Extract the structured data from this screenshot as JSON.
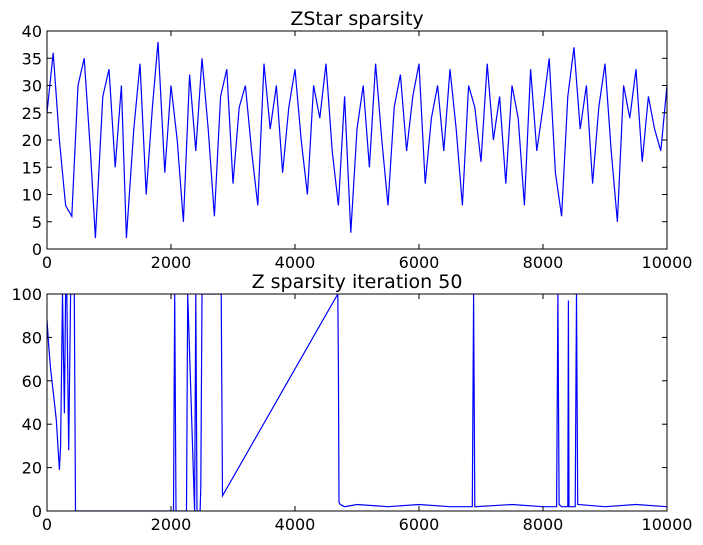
{
  "chart_data": [
    {
      "type": "line",
      "title": "ZStar sparsity",
      "xlabel": "",
      "ylabel": "",
      "xlim": [
        0,
        10000
      ],
      "ylim": [
        0,
        40
      ],
      "xticks": [
        0,
        2000,
        4000,
        6000,
        8000,
        10000
      ],
      "yticks": [
        0,
        5,
        10,
        15,
        20,
        25,
        30,
        35,
        40
      ],
      "grid": false,
      "legend": "none",
      "line_color": "#0000ff",
      "series": [
        {
          "description": "dense noisy signal oscillating roughly between 2 and 38 over 10000 iterations",
          "x": [
            0,
            100,
            200,
            300,
            400,
            500,
            600,
            700,
            780,
            900,
            1000,
            1100,
            1200,
            1280,
            1400,
            1500,
            1600,
            1700,
            1790,
            1900,
            2000,
            2100,
            2200,
            2300,
            2400,
            2500,
            2600,
            2700,
            2800,
            2900,
            3000,
            3100,
            3200,
            3300,
            3400,
            3500,
            3600,
            3700,
            3800,
            3900,
            4000,
            4100,
            4200,
            4300,
            4400,
            4500,
            4600,
            4700,
            4800,
            4900,
            5000,
            5100,
            5200,
            5300,
            5400,
            5500,
            5600,
            5700,
            5800,
            5900,
            6000,
            6100,
            6200,
            6300,
            6400,
            6500,
            6600,
            6700,
            6800,
            6900,
            7000,
            7100,
            7200,
            7300,
            7400,
            7500,
            7600,
            7700,
            7800,
            7900,
            8000,
            8100,
            8200,
            8300,
            8400,
            8500,
            8600,
            8700,
            8800,
            8900,
            9000,
            9100,
            9200,
            9300,
            9400,
            9500,
            9600,
            9700,
            9800,
            9900,
            10000
          ],
          "values": [
            25,
            36,
            20,
            8,
            6,
            30,
            35,
            18,
            2,
            28,
            33,
            15,
            30,
            2,
            22,
            34,
            10,
            26,
            38,
            14,
            30,
            20,
            5,
            32,
            18,
            35,
            22,
            6,
            28,
            33,
            12,
            26,
            30,
            18,
            8,
            34,
            22,
            30,
            14,
            26,
            33,
            20,
            10,
            30,
            24,
            34,
            18,
            8,
            28,
            3,
            22,
            30,
            15,
            34,
            20,
            8,
            26,
            32,
            18,
            28,
            34,
            12,
            24,
            30,
            18,
            33,
            22,
            8,
            30,
            26,
            16,
            34,
            20,
            28,
            12,
            30,
            24,
            8,
            33,
            18,
            26,
            35,
            14,
            6,
            28,
            37,
            22,
            30,
            12,
            26,
            34,
            18,
            5,
            30,
            24,
            33,
            16,
            28,
            22,
            18,
            30
          ]
        }
      ]
    },
    {
      "type": "line",
      "title": "Z sparsity iteration 50",
      "xlabel": "",
      "ylabel": "",
      "xlim": [
        0,
        10000
      ],
      "ylim": [
        0,
        100
      ],
      "xticks": [
        0,
        2000,
        4000,
        6000,
        8000,
        10000
      ],
      "yticks": [
        0,
        20,
        40,
        60,
        80,
        100
      ],
      "grid": false,
      "legend": "none",
      "line_color": "#0000ff",
      "series": [
        {
          "description": "decays from about 88 to about 20 in first 300 iterations, mostly clipped above 100 until ~400, sparse spikes, then near 2-4 after ~4700 with a few spikes",
          "x": [
            0,
            30,
            60,
            100,
            150,
            200,
            220,
            250,
            280,
            300,
            320,
            350,
            380,
            400,
            420,
            440,
            460,
            2040,
            2060,
            2080,
            2250,
            2270,
            2380,
            2400,
            2420,
            2470,
            2480,
            2500,
            2810,
            2830,
            4690,
            4700,
            4710,
            4730,
            4800,
            5000,
            5500,
            6000,
            6500,
            6860,
            6880,
            6900,
            7500,
            8000,
            8220,
            8240,
            8260,
            8300,
            8400,
            8410,
            8420,
            8520,
            8540,
            8560,
            9000,
            9500,
            10000
          ],
          "values": [
            88,
            75,
            65,
            55,
            42,
            19,
            30,
            100,
            45,
            100,
            100,
            28,
            100,
            100,
            100,
            100,
            0,
            0,
            100,
            0,
            0,
            100,
            0,
            100,
            0,
            0,
            11,
            100,
            100,
            7,
            100,
            68,
            4,
            3,
            2,
            3,
            2,
            3,
            2,
            2,
            100,
            2,
            3,
            2,
            2,
            100,
            3,
            2,
            2,
            97,
            2,
            2,
            100,
            3,
            2,
            3,
            2
          ]
        }
      ]
    }
  ]
}
